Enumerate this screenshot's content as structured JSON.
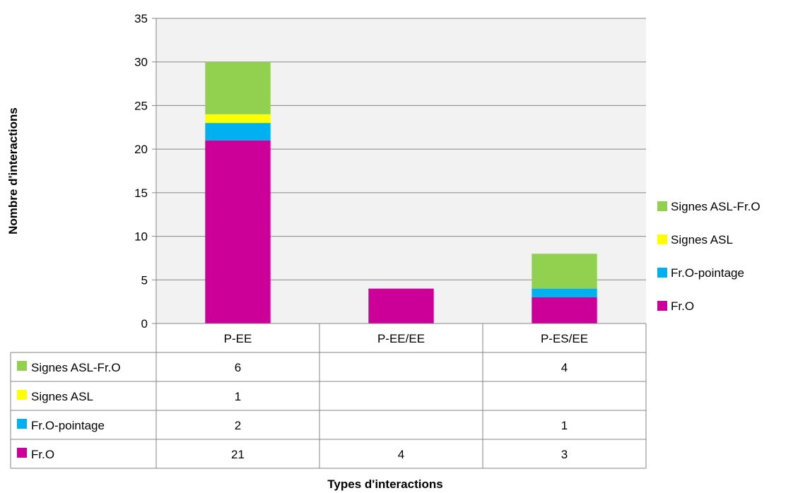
{
  "chart_data": {
    "type": "bar",
    "stacked": true,
    "categories": [
      "P-EE",
      "P-EE/EE",
      "P-ES/EE"
    ],
    "series": [
      {
        "name": "Fr.O",
        "color": "#CC0099",
        "values": [
          21,
          4,
          3
        ]
      },
      {
        "name": "Fr.O-pointage",
        "color": "#00B0F0",
        "values": [
          2,
          null,
          1
        ]
      },
      {
        "name": "Signes ASL",
        "color": "#FFFF00",
        "values": [
          1,
          null,
          null
        ]
      },
      {
        "name": "Signes ASL-Fr.O",
        "color": "#92D050",
        "values": [
          6,
          null,
          4
        ]
      }
    ],
    "xlabel": "Types d'interactions",
    "ylabel": "Nombre d'interactions",
    "ylim": [
      0,
      35
    ],
    "yticks": [
      0,
      5,
      10,
      15,
      20,
      25,
      30,
      35
    ],
    "grid": true,
    "legend": "right",
    "data_table": true
  }
}
